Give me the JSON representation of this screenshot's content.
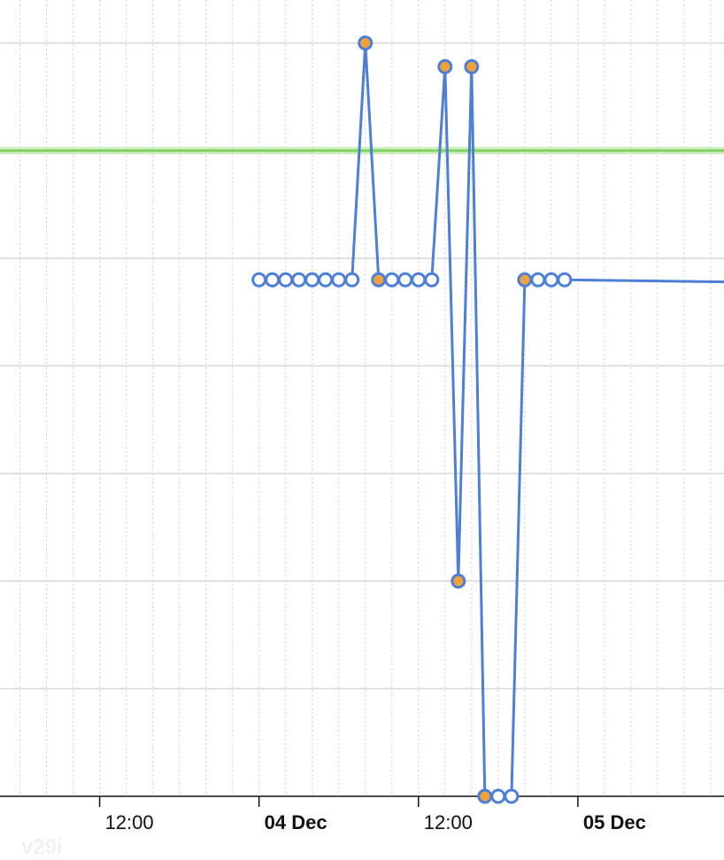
{
  "chart_data": {
    "type": "line",
    "title": "",
    "xlabel": "",
    "ylabel": "",
    "x_range": [
      "2023-12-03T04:30",
      "2023-12-05T11:00"
    ],
    "y_range": [
      0,
      7.4
    ],
    "grid": {
      "horizontal": true,
      "vertical_dotted": true
    },
    "threshold": {
      "value": 6,
      "color": "#7ccf5c"
    },
    "x_ticks": [
      {
        "at": "2023-12-03T12:00",
        "label": "12:00",
        "major": false
      },
      {
        "at": "2023-12-04T00:00",
        "label": "04 Dec",
        "major": true
      },
      {
        "at": "2023-12-04T12:00",
        "label": "12:00",
        "major": false
      },
      {
        "at": "2023-12-05T00:00",
        "label": "05 Dec",
        "major": true
      },
      {
        "at": "2023-12-05T12:00",
        "label": "",
        "major": false
      }
    ],
    "series": [
      {
        "color": "#4f7fd4",
        "points": [
          {
            "x": "2023-12-04T00:00",
            "y": 4.8,
            "alert": false
          },
          {
            "x": "2023-12-04T01:00",
            "y": 4.8,
            "alert": false
          },
          {
            "x": "2023-12-04T02:00",
            "y": 4.8,
            "alert": false
          },
          {
            "x": "2023-12-04T03:00",
            "y": 4.8,
            "alert": false
          },
          {
            "x": "2023-12-04T04:00",
            "y": 4.8,
            "alert": false
          },
          {
            "x": "2023-12-04T05:00",
            "y": 4.8,
            "alert": false
          },
          {
            "x": "2023-12-04T06:00",
            "y": 4.8,
            "alert": false
          },
          {
            "x": "2023-12-04T07:00",
            "y": 4.8,
            "alert": false
          },
          {
            "x": "2023-12-04T08:00",
            "y": 7,
            "alert": true
          },
          {
            "x": "2023-12-04T09:00",
            "y": 4.8,
            "alert": true
          },
          {
            "x": "2023-12-04T10:00",
            "y": 4.8,
            "alert": false
          },
          {
            "x": "2023-12-04T11:00",
            "y": 4.8,
            "alert": false
          },
          {
            "x": "2023-12-04T12:00",
            "y": 4.8,
            "alert": false
          },
          {
            "x": "2023-12-04T13:00",
            "y": 4.8,
            "alert": false
          },
          {
            "x": "2023-12-04T14:00",
            "y": 6.78,
            "alert": true
          },
          {
            "x": "2023-12-04T15:00",
            "y": 2,
            "alert": true
          },
          {
            "x": "2023-12-04T16:00",
            "y": 6.78,
            "alert": true
          },
          {
            "x": "2023-12-04T17:00",
            "y": 0,
            "alert": true
          },
          {
            "x": "2023-12-04T18:00",
            "y": 0,
            "alert": false
          },
          {
            "x": "2023-12-04T19:00",
            "y": 0,
            "alert": false
          },
          {
            "x": "2023-12-04T20:00",
            "y": 4.8,
            "alert": true
          },
          {
            "x": "2023-12-04T21:00",
            "y": 4.8,
            "alert": false
          },
          {
            "x": "2023-12-04T22:00",
            "y": 4.8,
            "alert": false
          },
          {
            "x": "2023-12-04T23:00",
            "y": 4.8,
            "alert": false
          },
          {
            "x": "2023-12-05T11:00",
            "y": 4.78,
            "alert": false,
            "marker": false
          }
        ]
      }
    ],
    "colors": {
      "line": "#4f7fd4",
      "alert_fill": "#f0a23f",
      "normal_fill": "#ffffff",
      "threshold": "#7ccf5c",
      "grid": "#d6d6d6",
      "axis": "#111111"
    }
  },
  "watermark": "v29i"
}
